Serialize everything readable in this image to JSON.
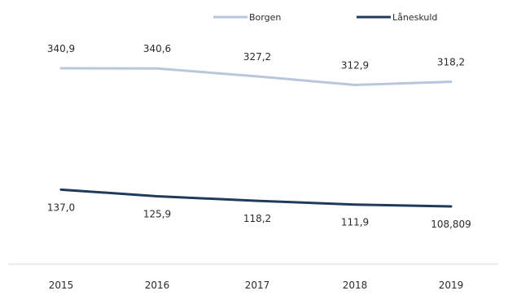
{
  "chart_data": {
    "type": "line",
    "x": [
      "2015",
      "2016",
      "2017",
      "2018",
      "2019"
    ],
    "series": [
      {
        "name": "Borgen",
        "values": [
          340.9,
          340.6,
          327.2,
          312.9,
          318.2
        ],
        "labels": [
          "340,9",
          "340,6",
          "327,2",
          "312,9",
          "318,2"
        ],
        "color": "#b9c6dc"
      },
      {
        "name": "Låneskuld",
        "values": [
          137.0,
          125.9,
          118.2,
          111.9,
          108.809
        ],
        "labels": [
          "137,0",
          "125,9",
          "118,2",
          "111,9",
          "108,809"
        ],
        "color": "#1f3b5c"
      }
    ],
    "legend_position": "top-right",
    "grid": false,
    "ylim": [
      0,
      400
    ]
  }
}
